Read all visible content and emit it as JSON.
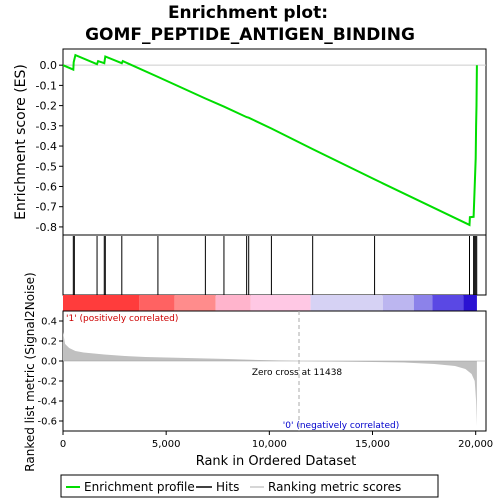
{
  "chart_data": {
    "type": "line",
    "title_line1": "Enrichment plot:",
    "title_line2": "GOMF_PEPTIDE_ANTIGEN_BINDING",
    "es_ylabel": "Enrichment score (ES)",
    "metric_ylabel": "Ranked list metric (Signal2Noise)",
    "xlabel": "Rank in Ordered Dataset",
    "xlim": [
      0,
      20500
    ],
    "es_ylim": [
      -0.84,
      0.08
    ],
    "metric_ylim": [
      -0.7,
      0.5
    ],
    "x_ticks": [
      0,
      5000,
      10000,
      15000,
      20000
    ],
    "x_tick_labels": [
      "0",
      "5,000",
      "10,000",
      "15,000",
      "20,000"
    ],
    "es_ticks": [
      0.0,
      -0.1,
      -0.2,
      -0.3,
      -0.4,
      -0.5,
      -0.6,
      -0.7,
      -0.8
    ],
    "es_tick_labels": [
      "0.0",
      "-0.1",
      "-0.2",
      "-0.3",
      "-0.4",
      "-0.5",
      "-0.6",
      "-0.7",
      "-0.8"
    ],
    "metric_ticks": [
      0.4,
      0.2,
      0.0,
      -0.2,
      -0.4,
      -0.6
    ],
    "metric_tick_labels": [
      "0.4",
      "0.2",
      "0.0",
      "-0.2",
      "-0.4",
      "-0.6"
    ],
    "es_curve": {
      "x": [
        0,
        500,
        520,
        600,
        1650,
        1700,
        2000,
        2050,
        2850,
        2900,
        4600,
        6900,
        7800,
        8900,
        9000,
        10100,
        12100,
        15100,
        19700,
        19720,
        19900,
        19950,
        20000,
        20020,
        20040,
        20060
      ],
      "y": [
        0.0,
        -0.022,
        0.015,
        0.05,
        0.005,
        0.02,
        0.01,
        0.043,
        0.01,
        0.02,
        -0.058,
        -0.165,
        -0.205,
        -0.257,
        -0.26,
        -0.313,
        -0.415,
        -0.565,
        -0.79,
        -0.752,
        -0.75,
        -0.6,
        -0.46,
        -0.3,
        -0.2,
        0.0
      ]
    },
    "hits": [
      500,
      550,
      1650,
      2000,
      2050,
      2850,
      4600,
      6900,
      7800,
      8900,
      9000,
      10100,
      12100,
      15100,
      19700,
      19900,
      19950,
      20000,
      20050
    ],
    "heatmap_segments": [
      {
        "x0": 0,
        "x1": 3700,
        "color": "#ff3c3c"
      },
      {
        "x0": 3700,
        "x1": 5400,
        "color": "#ff6262"
      },
      {
        "x0": 5400,
        "x1": 7400,
        "color": "#ff8c8c"
      },
      {
        "x0": 7400,
        "x1": 9100,
        "color": "#ffb4cc"
      },
      {
        "x0": 9100,
        "x1": 12000,
        "color": "#ffc8e4"
      },
      {
        "x0": 12000,
        "x1": 15500,
        "color": "#d6d2f4"
      },
      {
        "x0": 15500,
        "x1": 17000,
        "color": "#bcb6f0"
      },
      {
        "x0": 17000,
        "x1": 17900,
        "color": "#8c82ea"
      },
      {
        "x0": 17900,
        "x1": 19400,
        "color": "#5a48e4"
      },
      {
        "x0": 19400,
        "x1": 20060,
        "color": "#2a12d2"
      }
    ],
    "metric_curve": {
      "x": [
        0,
        100,
        300,
        600,
        1000,
        2000,
        3000,
        4000,
        6000,
        8000,
        9500,
        11438,
        13000,
        15000,
        16500,
        18000,
        19000,
        19500,
        19800,
        19950,
        20020,
        20060
      ],
      "y": [
        0.29,
        0.17,
        0.13,
        0.1,
        0.085,
        0.065,
        0.05,
        0.04,
        0.03,
        0.02,
        0.01,
        0.0,
        -0.005,
        -0.01,
        -0.015,
        -0.03,
        -0.05,
        -0.08,
        -0.13,
        -0.2,
        -0.4,
        -0.65
      ]
    },
    "zero_cross_rank": 11438,
    "zero_cross_label": "Zero cross at 11438",
    "pos_label": "'1' (positively correlated)",
    "neg_label": "'0' (negatively correlated)",
    "legend": [
      {
        "label": "Enrichment profile",
        "color": "#00dd00"
      },
      {
        "label": "Hits",
        "color": "#000000"
      },
      {
        "label": "Ranking metric scores",
        "color": "#c8c8c8"
      }
    ],
    "colors": {
      "es_line": "#00dd00",
      "hit": "#000000",
      "metric_fill": "#c0c0c0",
      "pos_text": "#cc0000",
      "neg_text": "#0000cc",
      "zero_line": "#000000",
      "grid_zero": "#cccccc"
    }
  }
}
